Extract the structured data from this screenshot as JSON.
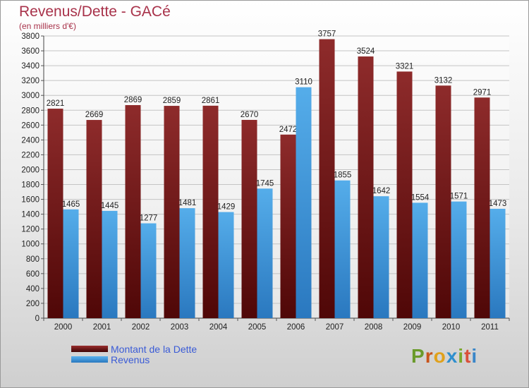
{
  "title": "Revenus/Dette - GACé",
  "subtitle": "(en milliers d'€)",
  "logo": {
    "letters": [
      "P",
      "r",
      "o",
      "x",
      "i",
      "t",
      "i"
    ],
    "colors": [
      "#6a9a2a",
      "#c8541c",
      "#e0a11c",
      "#2f8fce",
      "#7aa82c",
      "#d9503a",
      "#3a86c8"
    ]
  },
  "chart_data": {
    "type": "bar",
    "categories": [
      "2000",
      "2001",
      "2002",
      "2003",
      "2004",
      "2005",
      "2006",
      "2007",
      "2008",
      "2009",
      "2010",
      "2011"
    ],
    "series": [
      {
        "name": "Montant de la Dette",
        "color": "#8e2424",
        "values": [
          2821,
          2669,
          2869,
          2859,
          2861,
          2670,
          2472,
          3757,
          3524,
          3321,
          3132,
          2971
        ]
      },
      {
        "name": "Revenus",
        "color": "#4ba3e3",
        "values": [
          1465,
          1445,
          1277,
          1481,
          1429,
          1745,
          3110,
          1855,
          1642,
          1554,
          1571,
          1473
        ]
      }
    ],
    "ylim": [
      0,
      3800
    ],
    "ytick_step": 200,
    "grid": true,
    "legend": "bottom-left"
  }
}
